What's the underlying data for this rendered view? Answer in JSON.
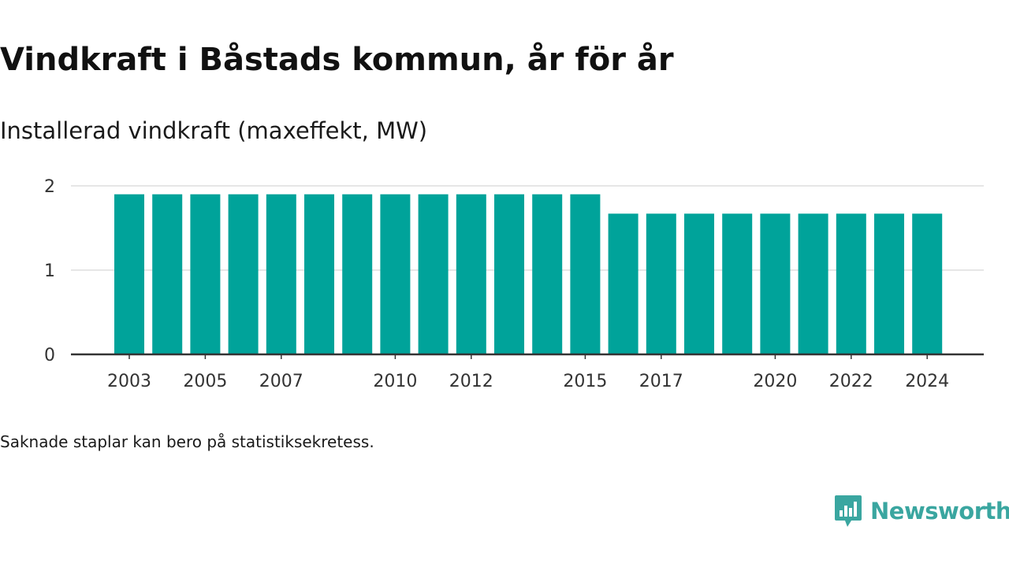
{
  "header": {
    "title": "Vindkraft i Båstads kommun, år för år",
    "subtitle": "Installerad vindkraft (maxeffekt, MW)"
  },
  "footer": {
    "note": "Saknade staplar kan bero på statistiksekretess.",
    "brand": "Newsworthy",
    "brand_icon": "chart-speech-bubble-icon"
  },
  "colors": {
    "bar": "#00a39a",
    "grid": "#dddddd",
    "axis": "#333333",
    "brand": "#3aa6a0"
  },
  "chart_data": {
    "type": "bar",
    "title": "Vindkraft i Båstads kommun, år för år",
    "subtitle": "Installerad vindkraft (maxeffekt, MW)",
    "categories": [
      "2003",
      "2004",
      "2005",
      "2006",
      "2007",
      "2008",
      "2009",
      "2010",
      "2011",
      "2012",
      "2013",
      "2014",
      "2015",
      "2016",
      "2017",
      "2018",
      "2019",
      "2020",
      "2021",
      "2022",
      "2023",
      "2024"
    ],
    "x_tick_labels": [
      "2003",
      "2005",
      "2007",
      "2010",
      "2012",
      "2015",
      "2017",
      "2020",
      "2022",
      "2024"
    ],
    "series": [
      {
        "values": [
          1.9,
          1.9,
          1.9,
          1.9,
          1.9,
          1.9,
          1.9,
          1.9,
          1.9,
          1.9,
          1.9,
          1.9,
          1.9,
          1.67,
          1.67,
          1.67,
          1.67,
          1.67,
          1.67,
          1.67,
          1.67,
          1.67
        ]
      }
    ],
    "y_ticks": [
      0,
      1,
      2
    ],
    "ylim": [
      0,
      2
    ],
    "grid": true,
    "legend": "none"
  }
}
